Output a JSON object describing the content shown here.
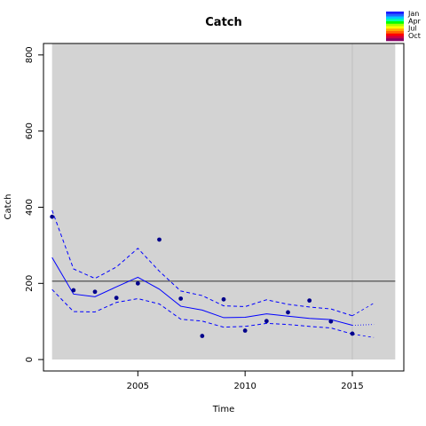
{
  "chart_data": {
    "type": "line",
    "title": "Catch",
    "xlabel": "Time",
    "ylabel": "Catch",
    "xlim": [
      2000.6,
      2017.4
    ],
    "ylim": [
      -30,
      830
    ],
    "x_ticks": [
      2005,
      2010,
      2015
    ],
    "y_ticks": [
      0,
      200,
      400,
      600,
      800
    ],
    "shaded_region": [
      2001,
      2017
    ],
    "reference_line_y": 206,
    "vertical_marker_x": 2015,
    "observed": {
      "x": [
        2001,
        2002,
        2003,
        2004,
        2005,
        2006,
        2007,
        2008,
        2009,
        2010,
        2011,
        2012,
        2013,
        2014,
        2015
      ],
      "y": [
        375,
        182,
        178,
        162,
        200,
        315,
        160,
        62,
        158,
        76,
        101,
        124,
        155,
        100,
        68
      ]
    },
    "fitted": {
      "x": [
        2001,
        2002,
        2003,
        2004,
        2005,
        2006,
        2007,
        2008,
        2009,
        2010,
        2011,
        2012,
        2013,
        2014,
        2015
      ],
      "y": [
        268,
        172,
        165,
        191,
        216,
        185,
        140,
        130,
        110,
        111,
        120,
        114,
        108,
        105,
        90
      ]
    },
    "upper": {
      "x": [
        2001,
        2002,
        2003,
        2004,
        2005,
        2006,
        2007,
        2008,
        2009,
        2010,
        2011,
        2012,
        2013,
        2014,
        2015
      ],
      "y": [
        392,
        238,
        213,
        243,
        292,
        232,
        180,
        168,
        141,
        139,
        157,
        145,
        138,
        133,
        115
      ]
    },
    "lower": {
      "x": [
        2001,
        2002,
        2003,
        2004,
        2005,
        2006,
        2007,
        2008,
        2009,
        2010,
        2011,
        2012,
        2013,
        2014,
        2015
      ],
      "y": [
        184,
        126,
        125,
        150,
        160,
        146,
        106,
        101,
        85,
        87,
        95,
        92,
        87,
        83,
        67
      ]
    },
    "forecast_upper": {
      "x": [
        2015,
        2016
      ],
      "y": [
        115,
        148
      ]
    },
    "forecast_mid": {
      "x": [
        2015,
        2016
      ],
      "y": [
        90,
        92
      ]
    },
    "forecast_lower": {
      "x": [
        2015,
        2016
      ],
      "y": [
        67,
        58
      ]
    },
    "legend": {
      "labels": [
        "Jan",
        "Apr",
        "Jul",
        "Oct"
      ],
      "colors": [
        "#1c1cff",
        "#2266ff",
        "#00c8ff",
        "#00ffaa",
        "#00ff00",
        "#aaff00",
        "#ffff00",
        "#ffaa00",
        "#ff6600",
        "#ff0000",
        "#cc0044",
        "#880066"
      ]
    },
    "colors": {
      "panel": "#d3d3d3",
      "series": "#0000ff",
      "points": "#00008b",
      "reference": "#666666",
      "marker": "#bfbfbf"
    }
  }
}
